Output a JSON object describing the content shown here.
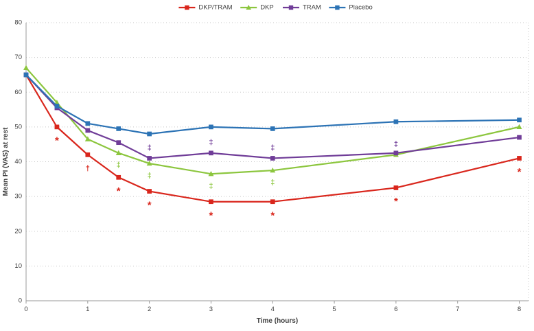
{
  "chart_data": {
    "type": "line",
    "x": [
      0,
      0.5,
      1,
      1.5,
      2,
      3,
      4,
      6,
      8
    ],
    "x_ticks": [
      0,
      1,
      2,
      3,
      4,
      5,
      6,
      7,
      8
    ],
    "y_ticks": [
      0,
      10,
      20,
      30,
      40,
      50,
      60,
      70,
      80
    ],
    "xlabel": "Time (hours)",
    "ylabel": "Mean PI (VAS) at rest",
    "xlim": [
      0,
      8.15
    ],
    "ylim": [
      0,
      80
    ],
    "grid": "horizontal-dotted",
    "legend_position": "top-center",
    "series": [
      {
        "name": "DKP/TRAM",
        "color": "#d9261c",
        "marker": "square",
        "values": [
          65,
          50,
          42,
          35.5,
          31.5,
          28.5,
          28.5,
          32.5,
          41
        ]
      },
      {
        "name": "DKP",
        "color": "#8cc63e",
        "marker": "triangle",
        "values": [
          67,
          57,
          46.5,
          42.5,
          39.5,
          36.5,
          37.5,
          42,
          50
        ]
      },
      {
        "name": "TRAM",
        "color": "#703d98",
        "marker": "square",
        "values": [
          65,
          55.5,
          49,
          45.5,
          41,
          42.5,
          41,
          42.5,
          47
        ]
      },
      {
        "name": "Placebo",
        "color": "#2c73b5",
        "marker": "square",
        "values": [
          65,
          56,
          51,
          49.5,
          48,
          50,
          49.5,
          51.5,
          52
        ]
      }
    ],
    "annotations": [
      {
        "x": 0.5,
        "y": 46,
        "text": "*",
        "series": "DKP/TRAM"
      },
      {
        "x": 1,
        "y": 38,
        "text": "†",
        "series": "DKP/TRAM"
      },
      {
        "x": 1.5,
        "y": 31.5,
        "text": "*",
        "series": "DKP/TRAM"
      },
      {
        "x": 2,
        "y": 27.5,
        "text": "*",
        "series": "DKP/TRAM"
      },
      {
        "x": 3,
        "y": 24.5,
        "text": "*",
        "series": "DKP/TRAM"
      },
      {
        "x": 4,
        "y": 24.5,
        "text": "*",
        "series": "DKP/TRAM"
      },
      {
        "x": 6,
        "y": 28.5,
        "text": "*",
        "series": "DKP/TRAM"
      },
      {
        "x": 8,
        "y": 37,
        "text": "*",
        "series": "DKP/TRAM"
      },
      {
        "x": 1.5,
        "y": 39,
        "text": "‡",
        "series": "DKP"
      },
      {
        "x": 2,
        "y": 36,
        "text": "‡",
        "series": "DKP"
      },
      {
        "x": 3,
        "y": 33,
        "text": "‡",
        "series": "DKP"
      },
      {
        "x": 4,
        "y": 34,
        "text": "‡",
        "series": "DKP"
      },
      {
        "x": 2,
        "y": 44,
        "text": "‡",
        "series": "TRAM"
      },
      {
        "x": 3,
        "y": 45.5,
        "text": "‡",
        "series": "TRAM"
      },
      {
        "x": 4,
        "y": 44,
        "text": "‡",
        "series": "TRAM"
      },
      {
        "x": 6,
        "y": 45,
        "text": "‡",
        "series": "TRAM"
      }
    ],
    "style": {
      "grid_color": "#c6c6c6",
      "axis_color": "#9a9a9a",
      "text_color": "#3f3f3f"
    }
  }
}
